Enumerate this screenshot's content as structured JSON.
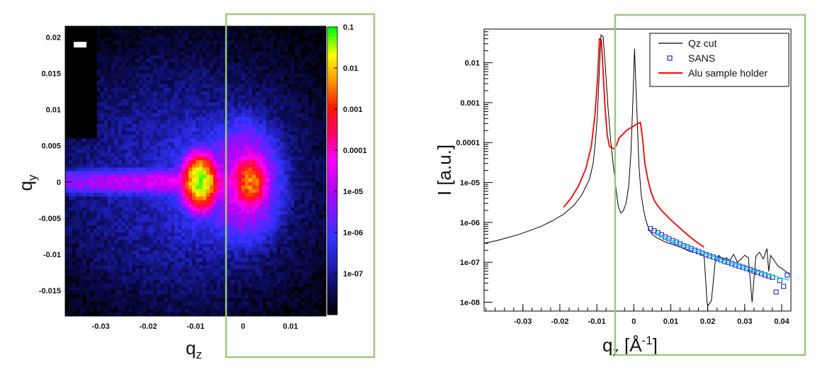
{
  "chart_data": [
    {
      "type": "heatmap",
      "title": "",
      "xlabel": "q",
      "xlabel_sub": "z",
      "ylabel": "q",
      "ylabel_sub": "y",
      "xlim": [
        -0.0375,
        0.0175
      ],
      "ylim": [
        -0.0185,
        0.0215
      ],
      "x_ticks": [
        -0.03,
        -0.02,
        -0.01,
        0,
        0.01
      ],
      "x_tick_labels": [
        "-0.03",
        "-0.02",
        "-0.01",
        "0",
        "0.01"
      ],
      "y_ticks": [
        0.02,
        0.015,
        0.01,
        0.005,
        0,
        -0.005,
        -0.01,
        -0.015
      ],
      "y_tick_labels": [
        "0.02",
        "0.015",
        "0.01",
        "0.005",
        "0",
        "-0.005",
        "-0.01",
        "-0.015"
      ],
      "color_scale": "log",
      "color_range": [
        1e-08,
        0.1
      ],
      "colorbar_tick_labels": [
        "0.1",
        "0.01",
        "0.001",
        "0.0001",
        "1e-05",
        "1e-06",
        "1e-07"
      ],
      "colorbar_ticks": [
        0.1,
        0.01,
        0.001,
        0.0001,
        1e-05,
        1e-06,
        1e-07
      ],
      "colormap": [
        "#000000",
        "#0b0b55",
        "#1f1fb8",
        "#3333ff",
        "#7a19ff",
        "#c000f0",
        "#ff00ff",
        "#ff0066",
        "#ff1a00",
        "#ff9900",
        "#ffff00",
        "#00ff00"
      ],
      "background_color": "#000000",
      "features": [
        {
          "name": "direct beam streak",
          "qz_range": [
            -0.038,
            -0.004
          ],
          "qy": 0,
          "intensity": 0.001
        },
        {
          "name": "peak",
          "qz": -0.009,
          "qy": 0,
          "intensity": 0.1
        },
        {
          "name": "peak",
          "qz": 0.0015,
          "qy": 0,
          "intensity": 0.01
        }
      ],
      "masked_region": {
        "qz_range": [
          -0.0375,
          -0.0305
        ],
        "qy_range": [
          0.0058,
          0.0215
        ]
      },
      "highlight_box_qz_range": [
        -0.0025,
        0.0235
      ]
    },
    {
      "type": "line",
      "title": "",
      "xlabel": "q",
      "xlabel_sub": "z",
      "xlabel_unit": "[Å",
      "xlabel_unit_sup": "-1",
      "xlabel_unit_end": "]",
      "ylabel": "I [a.u.]",
      "xlim": [
        -0.0405,
        0.0425
      ],
      "ylim": [
        6e-09,
        0.07
      ],
      "y_scale": "log",
      "x_ticks": [
        -0.03,
        -0.02,
        -0.01,
        0,
        0.01,
        0.02,
        0.03,
        0.04
      ],
      "x_tick_labels": [
        "-0.03",
        "-0.02",
        "-0.01",
        "0",
        "0.01",
        "0.02",
        "0.03",
        "0.04"
      ],
      "y_ticks": [
        0.01,
        0.001,
        0.0001,
        1e-05,
        1e-06,
        1e-07,
        1e-08
      ],
      "y_tick_labels": [
        "0.01",
        "0.001",
        "0.0001",
        "1e-05",
        "1e-06",
        "1e-07",
        "1e-08"
      ],
      "legend_position": "top-right",
      "highlight_box_qz_range": [
        -0.0035,
        0.0425
      ],
      "series": [
        {
          "name": "Qz cut",
          "style": "line",
          "color": "#000000",
          "x": [
            -0.0405,
            -0.037,
            -0.034,
            -0.031,
            -0.028,
            -0.025,
            -0.022,
            -0.019,
            -0.016,
            -0.014,
            -0.012,
            -0.011,
            -0.0105,
            -0.0099,
            -0.0094,
            -0.0089,
            -0.0083,
            -0.0077,
            -0.007,
            -0.0062,
            -0.0055,
            -0.0048,
            -0.0042,
            -0.0035,
            -0.0028,
            -0.0021,
            -0.0014,
            -0.0008,
            -0.0003,
            0.0002,
            0.0008,
            0.0014,
            0.002,
            0.0026,
            0.0032,
            0.0038,
            0.0044,
            0.005,
            0.006,
            0.007,
            0.008,
            0.009,
            0.01,
            0.011,
            0.012,
            0.013,
            0.014,
            0.015,
            0.016,
            0.017,
            0.018,
            0.019,
            0.0195,
            0.0198,
            0.02,
            0.021,
            0.022,
            0.023,
            0.024,
            0.025,
            0.026,
            0.027,
            0.028,
            0.029,
            0.03,
            0.031,
            0.032,
            0.033,
            0.034,
            0.035,
            0.036,
            0.0365,
            0.037,
            0.038,
            0.039,
            0.04,
            0.041,
            0.042
          ],
          "y": [
            3e-07,
            3.5e-07,
            4.2e-07,
            5e-07,
            6.3e-07,
            8e-07,
            1.1e-06,
            1.6e-06,
            2.8e-06,
            5e-06,
            1.2e-05,
            3e-05,
            8e-05,
            0.0004,
            0.004,
            0.05,
            0.045,
            0.008,
            0.0008,
            0.0001,
            2.5e-05,
            7e-06,
            2.5e-06,
            1.7e-06,
            2e-06,
            3e-06,
            8e-06,
            5e-05,
            0.0008,
            0.022,
            0.0007,
            2.5e-05,
            5e-06,
            2.2e-06,
            1.2e-06,
            8e-07,
            6e-07,
            5e-07,
            4.2e-07,
            3.8e-07,
            3.4e-07,
            3.1e-07,
            2.9e-07,
            2.7e-07,
            2.5e-07,
            2.3e-07,
            2.1e-07,
            1.9e-07,
            1.8e-07,
            1.7e-07,
            1.6e-07,
            1.5e-07,
            3e-08,
            1e-08,
            8e-09,
            1.1e-08,
            1e-07,
            1.5e-07,
            1.2e-07,
            1.3e-07,
            1.1e-07,
            1.6e-07,
            1e-07,
            1.2e-07,
            1.5e-07,
            1.3e-07,
            1e-08,
            1.4e-07,
            1.8e-07,
            1.2e-07,
            2.2e-07,
            6e-08,
            1.5e-07,
            1.1e-07,
            8e-08,
            7e-08,
            6e-08,
            5e-08
          ]
        },
        {
          "name": "SANS",
          "style": "markers",
          "marker": "open-square",
          "color": "#2a3cd6",
          "x": [
            0.0045,
            0.0055,
            0.0065,
            0.0075,
            0.0085,
            0.0095,
            0.0105,
            0.0115,
            0.0125,
            0.0135,
            0.0145,
            0.0155,
            0.0165,
            0.0175,
            0.0185,
            0.0195,
            0.0205,
            0.0215,
            0.0225,
            0.0235,
            0.0245,
            0.0255,
            0.0265,
            0.0275,
            0.0285,
            0.0295,
            0.0305,
            0.0315,
            0.0325,
            0.0335,
            0.0345,
            0.0355,
            0.0365,
            0.0375,
            0.0385,
            0.0395,
            0.0405,
            0.0415
          ],
          "y": [
            7e-07,
            6.2e-07,
            5.5e-07,
            4.9e-07,
            4.3e-07,
            3.9e-07,
            3.5e-07,
            3.2e-07,
            2.9e-07,
            2.6e-07,
            2.4e-07,
            2.2e-07,
            2e-07,
            1.85e-07,
            1.7e-07,
            1.55e-07,
            1.45e-07,
            1.35e-07,
            1.25e-07,
            1.15e-07,
            1.05e-07,
            1e-07,
            9.3e-08,
            8.6e-08,
            8e-08,
            7.5e-08,
            7e-08,
            6.5e-08,
            6e-08,
            5.6e-08,
            5.2e-08,
            4.8e-08,
            4.5e-08,
            4.2e-08,
            1.8e-08,
            3.5e-08,
            2.5e-08,
            4.8e-08
          ]
        },
        {
          "name": "",
          "style": "line",
          "color": "#00e5ff",
          "x": [
            0.006,
            0.01,
            0.015,
            0.02,
            0.025,
            0.03,
            0.035,
            0.04,
            0.042
          ],
          "y": [
            5.5e-07,
            3.6e-07,
            2.3e-07,
            1.55e-07,
            1.05e-07,
            7.5e-08,
            5.4e-08,
            4e-08,
            3.6e-08
          ]
        },
        {
          "name": "Alu sample holder",
          "style": "line",
          "color": "#ff0000",
          "x": [
            -0.019,
            -0.017,
            -0.015,
            -0.013,
            -0.0115,
            -0.0105,
            -0.0098,
            -0.0093,
            -0.0088,
            -0.0083,
            -0.0078,
            -0.0072,
            -0.0066,
            -0.006,
            -0.0053,
            -0.0046,
            -0.004,
            -0.003,
            -0.002,
            -0.001,
            0,
            0.001,
            0.0018,
            0.0024,
            0.003,
            0.0038,
            0.0046,
            0.0055,
            0.0065,
            0.0075,
            0.0085,
            0.0095,
            0.011,
            0.013,
            0.015,
            0.017,
            0.019
          ],
          "y": [
            2.4e-06,
            4e-06,
            8e-06,
            2.2e-05,
            8e-05,
            0.0005,
            0.004,
            0.04,
            0.038,
            0.006,
            0.0008,
            0.00016,
            8e-05,
            7.5e-05,
            7e-05,
            9e-05,
            0.00013,
            0.00016,
            0.0002,
            0.00023,
            0.00026,
            0.0003,
            0.00032,
            0.00012,
            3e-05,
            1.2e-05,
            6e-06,
            3.6e-06,
            2.6e-06,
            2e-06,
            1.6e-06,
            1.3e-06,
            9.5e-07,
            6.5e-07,
            4.5e-07,
            3.2e-07,
            2.4e-07
          ]
        }
      ]
    }
  ]
}
